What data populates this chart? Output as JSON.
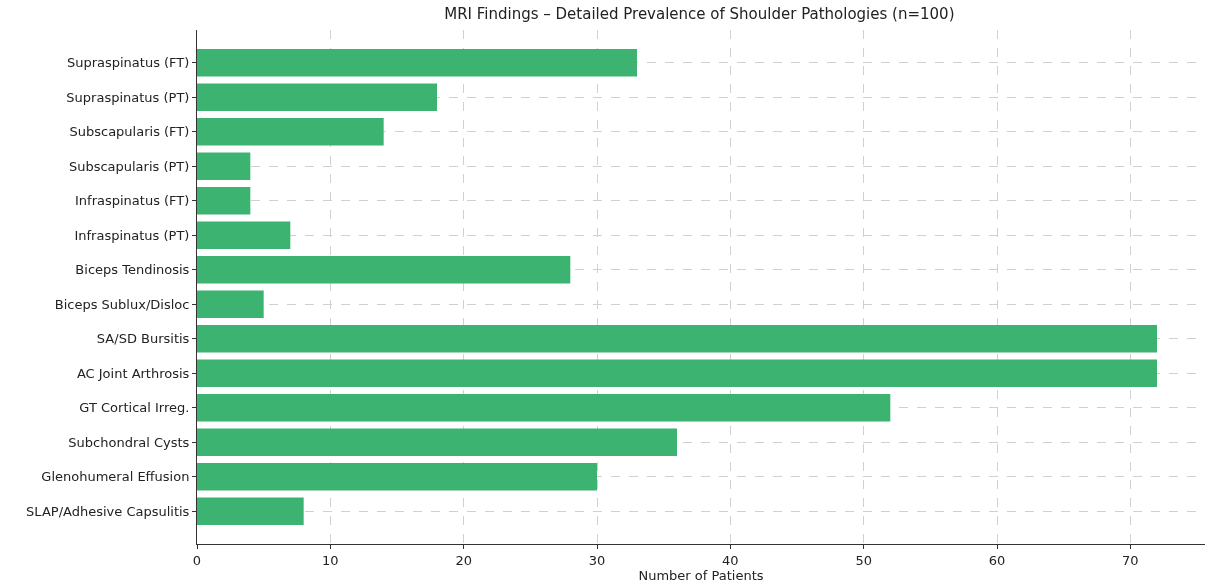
{
  "chart_data": {
    "type": "bar",
    "orientation": "horizontal",
    "title": "MRI Findings – Detailed Prevalence of Shoulder Pathologies (n=100)",
    "xlabel": "Number of Patients",
    "categories": [
      "Supraspinatus (FT)",
      "Supraspinatus (PT)",
      "Subscapularis (FT)",
      "Subscapularis (PT)",
      "Infraspinatus (FT)",
      "Infraspinatus (PT)",
      "Biceps Tendinosis",
      "Biceps Sublux/Disloc",
      "SA/SD Bursitis",
      "AC Joint Arthrosis",
      "GT Cortical Irreg.",
      "Subchondral Cysts",
      "Glenohumeral Effusion",
      "SLAP/Adhesive Capsulitis"
    ],
    "values": [
      33,
      18,
      14,
      4,
      4,
      7,
      28,
      5,
      72,
      72,
      52,
      36,
      30,
      8
    ],
    "color": "#3cb371",
    "xlim": [
      0,
      75.6
    ],
    "xticks": [
      0,
      10,
      20,
      30,
      40,
      50,
      60,
      70
    ],
    "grid": true
  }
}
